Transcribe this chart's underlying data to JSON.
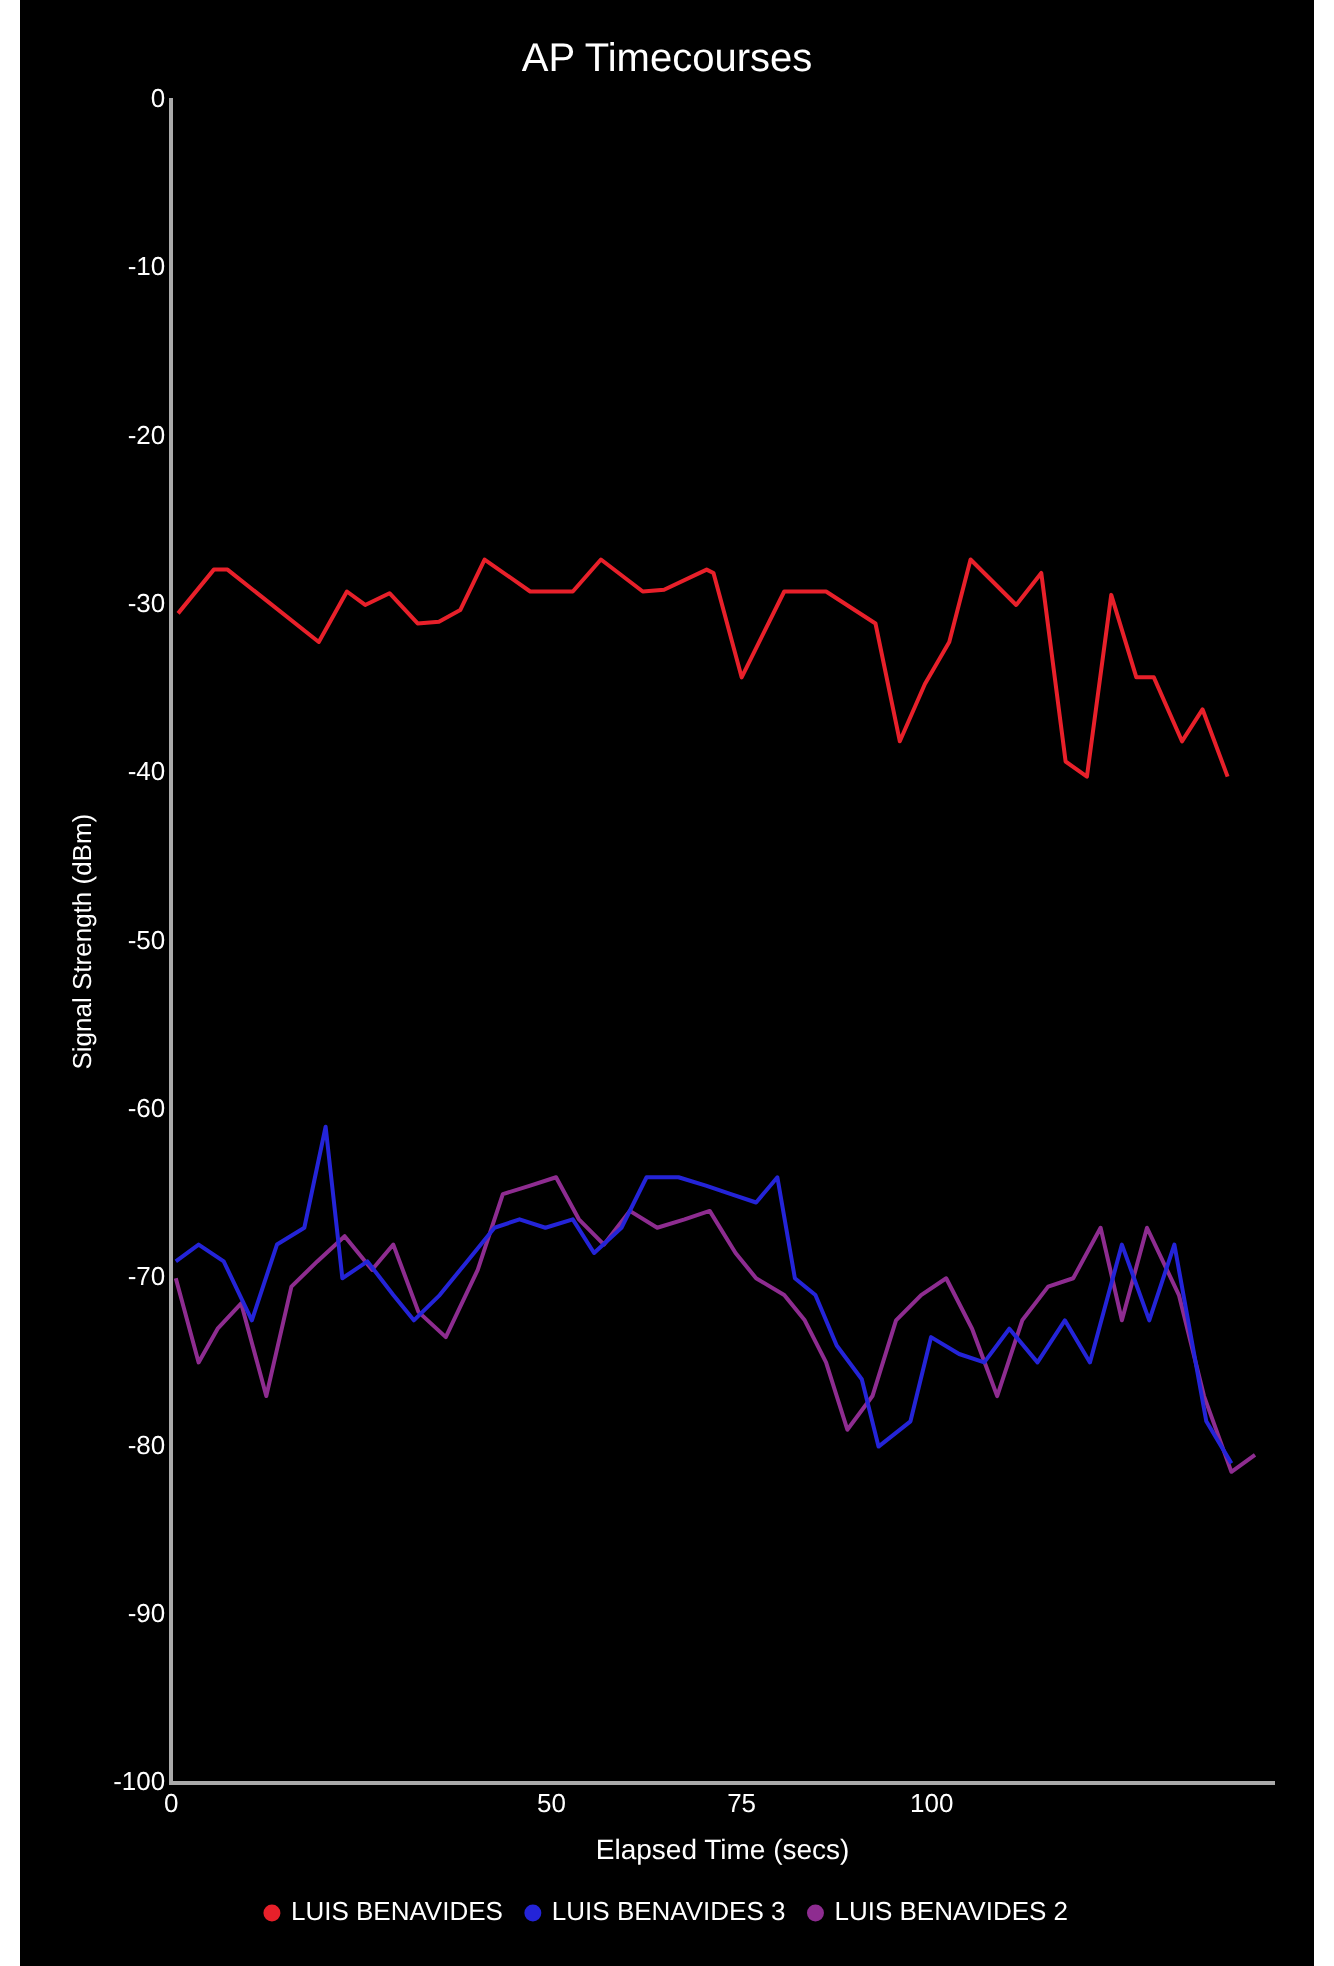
{
  "chart_data": {
    "type": "line",
    "title": "AP Timecourses",
    "xlabel": "Elapsed Time (secs)",
    "ylabel": "Signal Strength (dBm)",
    "xlim": [
      0,
      145
    ],
    "xticks": [
      0,
      50,
      75,
      100
    ],
    "ylim": [
      -100,
      0
    ],
    "yticks": [
      0,
      -10,
      -20,
      -30,
      -40,
      -50,
      -60,
      -70,
      -80,
      -90,
      -100
    ],
    "grid": false,
    "legend": "bottom",
    "marker": "none",
    "line_style": "solid",
    "series": [
      {
        "name": "LUIS BENAVIDES",
        "color": "#e8202a",
        "x": [
          0.9,
          5.6,
          7.4,
          19.4,
          23.1,
          25.5,
          28.7,
          32.4,
          35.2,
          38,
          41.2,
          47.2,
          52.8,
          56.5,
          62,
          64.8,
          70.4,
          71.3,
          75,
          80.6,
          86.1,
          92.6,
          95.8,
          99.1,
          102.3,
          105.1,
          111.1,
          114.4,
          117.6,
          120.4,
          123.6,
          126.9,
          129.2,
          132.9,
          135.6,
          138.9
        ],
        "values": [
          -30.5,
          -27.9,
          -27.9,
          -32.2,
          -29.2,
          -30,
          -29.3,
          -31.1,
          -31,
          -30.3,
          -27.3,
          -29.2,
          -29.2,
          -27.3,
          -29.2,
          -29.1,
          -27.9,
          -28.1,
          -34.3,
          -29.2,
          -29.2,
          -31.1,
          -38.1,
          -34.7,
          -32.2,
          -27.3,
          -30,
          -28.1,
          -39.3,
          -40.2,
          -29.4,
          -34.3,
          -34.3,
          -38.1,
          -36.2,
          -40.2
        ]
      },
      {
        "name": "LUIS BENAVIDES 3",
        "color": "#2424d8",
        "x": [
          0.6,
          3.6,
          6.9,
          10.6,
          13.9,
          17.5,
          20.3,
          22.5,
          25.8,
          29.2,
          31.9,
          35.3,
          38.9,
          42.5,
          45.8,
          49.2,
          52.8,
          55.6,
          59.2,
          62.5,
          66.7,
          70.3,
          73.6,
          76.9,
          79.7,
          82,
          84.7,
          87.5,
          90.8,
          93,
          97.2,
          99.9,
          103.6,
          106.9,
          110.2,
          113.9,
          117.5,
          120.8,
          125,
          128.6,
          131.9,
          136.1,
          139.4
        ],
        "values": [
          -69,
          -68,
          -69,
          -72.5,
          -68,
          -67,
          -61,
          -70,
          -69,
          -71,
          -72.5,
          -71,
          -69,
          -67,
          -66.5,
          -67,
          -66.5,
          -68.5,
          -67,
          -64,
          -64,
          -64.5,
          -65,
          -65.5,
          -64,
          -70,
          -71,
          -74,
          -76,
          -80,
          -78.5,
          -73.5,
          -74.5,
          -75,
          -73,
          -75,
          -72.5,
          -75,
          -68,
          -72.5,
          -68,
          -78.5,
          -81
        ]
      },
      {
        "name": "LUIS BENAVIDES 2",
        "color": "#8e2c90",
        "x": [
          0.6,
          3.6,
          6.1,
          9.2,
          12.5,
          15.8,
          19.2,
          22.8,
          26.4,
          29.2,
          32.5,
          36.1,
          40.3,
          43.6,
          47.2,
          50.6,
          53.6,
          56.9,
          60.3,
          63.9,
          67.5,
          70.8,
          74.2,
          76.9,
          80.6,
          83.3,
          86.1,
          88.9,
          92.2,
          95.3,
          98.6,
          101.9,
          105.3,
          108.6,
          111.9,
          115.3,
          118.6,
          122.2,
          125,
          128.3,
          132.5,
          135.8,
          139.4,
          142.5
        ],
        "values": [
          -70,
          -75,
          -73,
          -71.5,
          -77,
          -70.5,
          -69,
          -67.5,
          -69.5,
          -68,
          -72,
          -73.5,
          -69.5,
          -65,
          -64.5,
          -64,
          -66.5,
          -68,
          -66,
          -67,
          -66.5,
          -66,
          -68.5,
          -70,
          -71,
          -72.5,
          -75,
          -79,
          -77,
          -72.5,
          -71,
          -70,
          -73,
          -77,
          -72.5,
          -70.5,
          -70,
          -67,
          -72.5,
          -67,
          -71,
          -77,
          -81.5,
          -80.5
        ]
      }
    ]
  }
}
